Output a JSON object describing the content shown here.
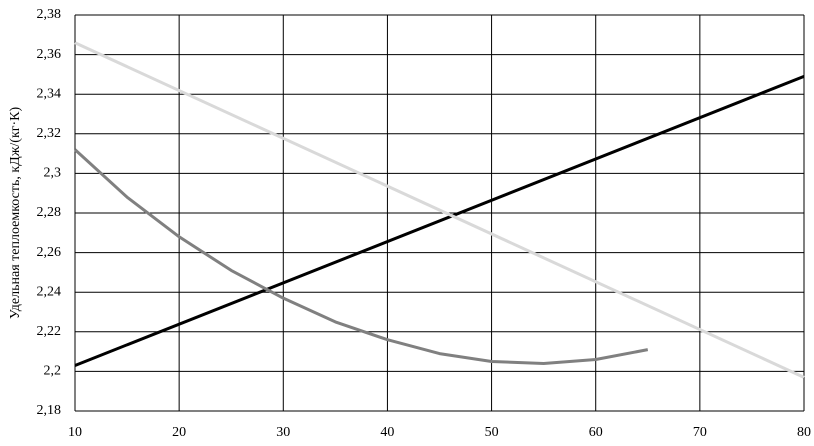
{
  "chart_data": {
    "type": "line",
    "y_label": "Удельная теплоемкость, кДж/(кг·К)",
    "xlim": [
      10,
      80
    ],
    "xticks": [
      10,
      20,
      30,
      40,
      50,
      60,
      70,
      80
    ],
    "ylim": [
      2.18,
      2.38
    ],
    "yticks": [
      {
        "value": 2.18,
        "label": "2,18"
      },
      {
        "value": 2.2,
        "label": "2,2"
      },
      {
        "value": 2.22,
        "label": "2,22"
      },
      {
        "value": 2.24,
        "label": "2,24"
      },
      {
        "value": 2.26,
        "label": "2,26"
      },
      {
        "value": 2.28,
        "label": "2,28"
      },
      {
        "value": 2.3,
        "label": "2,3"
      },
      {
        "value": 2.32,
        "label": "2,32"
      },
      {
        "value": 2.34,
        "label": "2,34"
      },
      {
        "value": 2.36,
        "label": "2,36"
      },
      {
        "value": 2.38,
        "label": "2,38"
      }
    ],
    "grid": true,
    "series": [
      {
        "color": "#000000",
        "x": [
          10,
          80
        ],
        "values": [
          2.203,
          2.349
        ]
      },
      {
        "color": "#d9d9d9",
        "x": [
          10,
          80
        ],
        "values": [
          2.366,
          2.197
        ]
      },
      {
        "color": "#808080",
        "x": [
          10,
          15,
          20,
          25,
          30,
          35,
          40,
          45,
          50,
          55,
          60,
          65
        ],
        "values": [
          2.312,
          2.288,
          2.268,
          2.251,
          2.237,
          2.225,
          2.216,
          2.209,
          2.205,
          2.204,
          2.206,
          2.211
        ]
      }
    ]
  }
}
